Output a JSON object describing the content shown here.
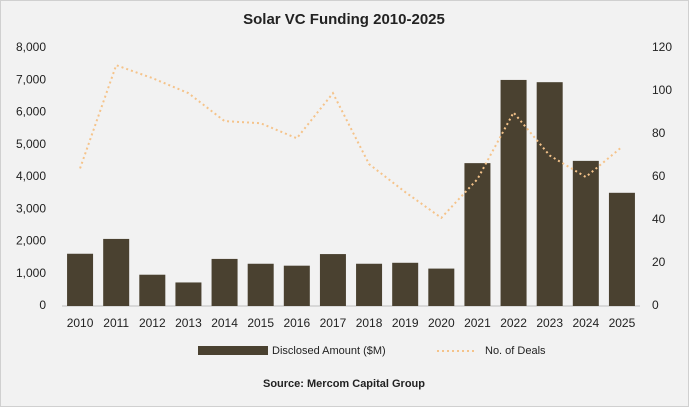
{
  "chart_data": {
    "type": "combo",
    "title": "Solar VC Funding 2010-2025",
    "categories": [
      "2010",
      "2011",
      "2012",
      "2013",
      "2014",
      "2015",
      "2016",
      "2017",
      "2018",
      "2019",
      "2020",
      "2021",
      "2022",
      "2023",
      "2024",
      "2025"
    ],
    "series": [
      {
        "name": "Disclosed Amount ($M)",
        "type": "bar",
        "color": "#4a4130",
        "values": [
          1620,
          2080,
          970,
          730,
          1460,
          1310,
          1250,
          1610,
          1310,
          1340,
          1160,
          4430,
          7010,
          6940,
          4500,
          3510
        ]
      },
      {
        "name": "No. of Deals",
        "type": "line",
        "axis": "y2",
        "color": "#f5c38a",
        "values": [
          64,
          112,
          106,
          99,
          86,
          85,
          78,
          99,
          66,
          53,
          41,
          59,
          90,
          70,
          60,
          74
        ]
      }
    ],
    "ylim": [
      0,
      8000
    ],
    "yticks": [
      0,
      {
        "value": 1000,
        "label": "1,000"
      },
      {
        "value": 2000,
        "label": "2,000"
      },
      {
        "value": 3000,
        "label": "3,000"
      },
      {
        "value": 4000,
        "label": "4,000"
      },
      {
        "value": 5000,
        "label": "5,000"
      },
      {
        "value": 6000,
        "label": "6,000"
      },
      {
        "value": 7000,
        "label": "7,000"
      },
      {
        "value": 8000,
        "label": "8,000"
      }
    ],
    "y2lim": [
      0,
      120
    ],
    "y2ticks": [
      0,
      20,
      40,
      60,
      80,
      100,
      120
    ],
    "legend": "bottom",
    "source": "Source: Mercom Capital Group"
  }
}
